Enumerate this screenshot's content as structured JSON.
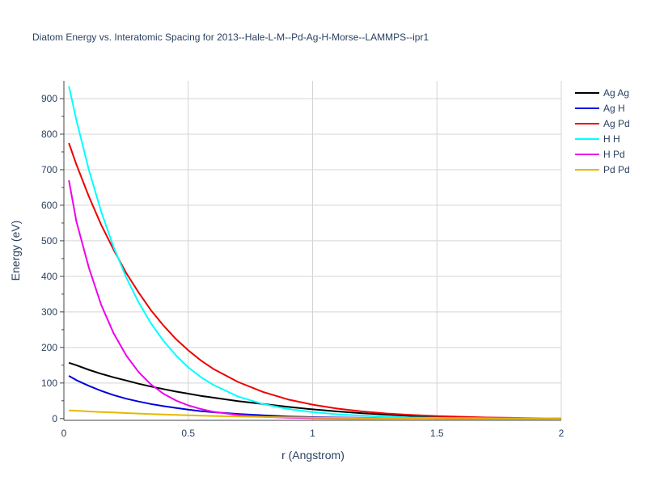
{
  "chart_data": {
    "type": "line",
    "title": "Diatom Energy vs. Interatomic Spacing for 2013--Hale-L-M--Pd-Ag-H-Morse--LAMMPS--ipr1",
    "xlabel": "r (Angstrom)",
    "ylabel": "Energy (eV)",
    "xlim": [
      0,
      2
    ],
    "ylim": [
      -5,
      950
    ],
    "x_ticks": [
      0,
      0.5,
      1,
      1.5,
      2
    ],
    "x_tick_labels": [
      "0",
      "0.5",
      "1",
      "1.5",
      "2"
    ],
    "y_ticks": [
      0,
      100,
      200,
      300,
      400,
      500,
      600,
      700,
      800,
      900
    ],
    "y_tick_labels": [
      "0",
      "100",
      "200",
      "300",
      "400",
      "500",
      "600",
      "700",
      "800",
      "900"
    ],
    "grid": true,
    "legend_position": "top-right",
    "x": [
      0.02,
      0.05,
      0.1,
      0.15,
      0.2,
      0.25,
      0.3,
      0.35,
      0.4,
      0.45,
      0.5,
      0.55,
      0.6,
      0.7,
      0.8,
      0.9,
      1.0,
      1.1,
      1.2,
      1.3,
      1.4,
      1.5,
      1.6,
      1.7,
      1.8,
      1.9,
      2.0
    ],
    "series": [
      {
        "name": "Ag Ag",
        "color": "#000000",
        "values": [
          157,
          150,
          137,
          126,
          116,
          107,
          98,
          90,
          83,
          76,
          70,
          64,
          59,
          49,
          41,
          33,
          26,
          20,
          15,
          11,
          7,
          5,
          3,
          1.5,
          1,
          0.5,
          0
        ]
      },
      {
        "name": "Ag H",
        "color": "#0000dd",
        "values": [
          120,
          108,
          92,
          78,
          66,
          56,
          48,
          41,
          35,
          30,
          25,
          21,
          18,
          13,
          9,
          6,
          4,
          3,
          2,
          1.3,
          0.8,
          0.5,
          0.3,
          0.2,
          0.1,
          0,
          0
        ]
      },
      {
        "name": "Ag Pd",
        "color": "#ee0000",
        "values": [
          775,
          715,
          625,
          545,
          475,
          410,
          355,
          305,
          262,
          224,
          192,
          164,
          140,
          103,
          75,
          54,
          39,
          28,
          20,
          14,
          10,
          7,
          5,
          3,
          2,
          1,
          0
        ]
      },
      {
        "name": "H H",
        "color": "#00ffff",
        "values": [
          935,
          840,
          700,
          582,
          482,
          398,
          327,
          268,
          219,
          178,
          144,
          117,
          95,
          62,
          41,
          27,
          18,
          12,
          8,
          5,
          3,
          2,
          1.2,
          0.8,
          0.5,
          0.3,
          0
        ]
      },
      {
        "name": "H Pd",
        "color": "#ee00ee",
        "values": [
          670,
          555,
          425,
          320,
          240,
          178,
          131,
          96,
          70,
          51,
          37,
          27,
          19,
          10,
          5,
          2.5,
          1,
          0.5,
          0,
          0,
          0,
          0,
          0,
          0,
          0,
          0,
          0
        ]
      },
      {
        "name": "Pd Pd",
        "color": "#e6b800",
        "values": [
          23,
          22,
          20,
          18.5,
          17,
          15.5,
          14,
          12.7,
          11.5,
          10.3,
          9.2,
          8.2,
          7.3,
          5.8,
          4.5,
          3.5,
          2.7,
          2.1,
          1.6,
          1.3,
          1,
          0.9,
          0.8,
          0.7,
          0.6,
          0.6,
          0.5
        ]
      }
    ]
  }
}
